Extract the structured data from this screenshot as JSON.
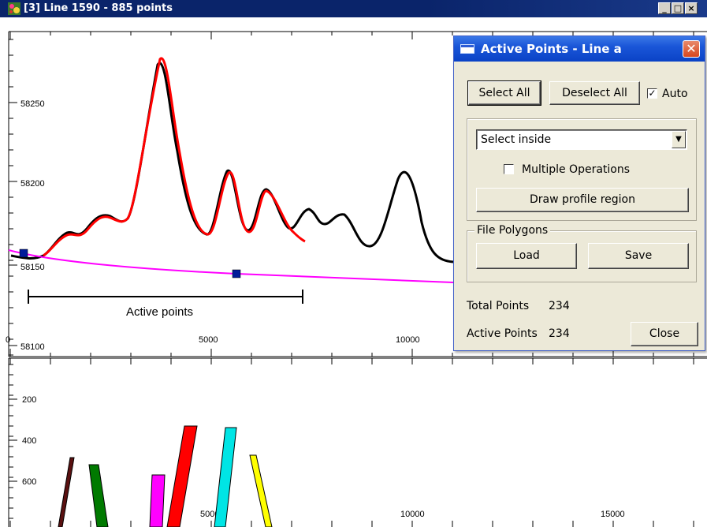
{
  "window": {
    "title": "[3] Line 1590 - 885 points",
    "controls": [
      "_",
      "□",
      "×"
    ]
  },
  "upper_chart": {
    "y_tick_labels": [
      "58250",
      "58200",
      "58150",
      "58100"
    ],
    "x_tick_labels": [
      "0",
      "5000",
      "10000"
    ],
    "annotation": "Active points",
    "colors": {
      "profile": "#000000",
      "fit": "#ff0000",
      "baseline": "#ff00ff",
      "marker": "#001a99"
    }
  },
  "lower_chart": {
    "y_tick_labels": [
      "200",
      "400",
      "600"
    ],
    "x_tick_labels": [
      "5000",
      "10000",
      "15000"
    ],
    "bar_colors": [
      "#5a1010",
      "#007a00",
      "#ff00ff",
      "#ff0000",
      "#00e5e5",
      "#ffff00"
    ]
  },
  "dialog": {
    "title": "Active Points - Line a",
    "select_all": "Select All",
    "deselect_all": "Deselect All",
    "auto_label": "Auto",
    "auto_checked": true,
    "selection_mode": "Select inside",
    "multiple_operations_label": "Multiple Operations",
    "multiple_operations_checked": false,
    "draw_profile_region": "Draw profile region",
    "file_polygons_label": "File Polygons",
    "load": "Load",
    "save": "Save",
    "total_points_label": "Total Points",
    "total_points": "234",
    "active_points_label": "Active Points",
    "active_points": "234",
    "close": "Close"
  }
}
